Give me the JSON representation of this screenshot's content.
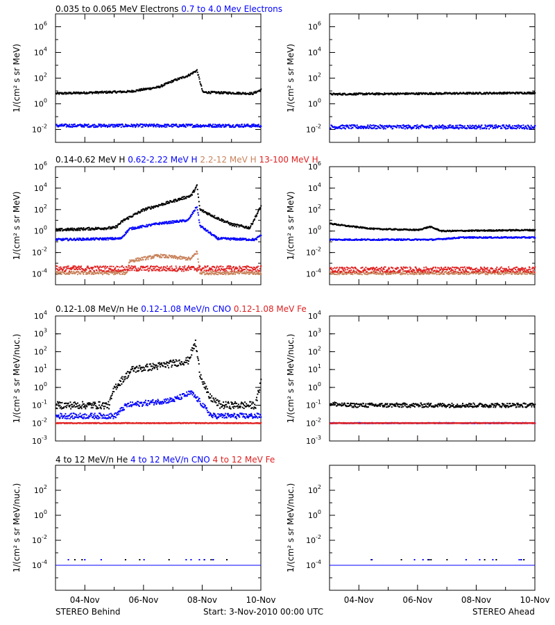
{
  "colors": {
    "black": "#000000",
    "blue": "#0000ff",
    "tan": "#c8825a",
    "red": "#e02020",
    "background": "#ffffff"
  },
  "rows": [
    {
      "legend": [
        {
          "text": "0.035 to 0.065 MeV Electrons",
          "color": "#000000"
        },
        {
          "text": "0.7 to 4.0 Mev Electrons",
          "color": "#0000ff"
        }
      ],
      "ylabel": "1/(cm² s sr MeV)"
    },
    {
      "legend": [
        {
          "text": "0.14-0.62 MeV H",
          "color": "#000000"
        },
        {
          "text": "0.62-2.22 MeV H",
          "color": "#0000ff"
        },
        {
          "text": "2.2-12 MeV H",
          "color": "#c8825a"
        },
        {
          "text": "13-100 MeV H",
          "color": "#e02020"
        }
      ],
      "ylabel": "1/(cm² s sr MeV)"
    },
    {
      "legend": [
        {
          "text": "0.12-1.08 MeV/n He",
          "color": "#000000"
        },
        {
          "text": "0.12-1.08 MeV/n CNO",
          "color": "#0000ff"
        },
        {
          "text": "0.12-1.08 MeV Fe",
          "color": "#e02020"
        }
      ],
      "ylabel": "1/(cm² s sr MeV/nuc.)"
    },
    {
      "legend": [
        {
          "text": "4 to 12 MeV/n He",
          "color": "#000000"
        },
        {
          "text": "4 to 12 MeV/n CNO",
          "color": "#0000ff"
        },
        {
          "text": "4 to 12 MeV Fe",
          "color": "#e02020"
        }
      ],
      "ylabel": "1/(cm² s sr MeV/nuc.)"
    }
  ],
  "footer": {
    "left": "STEREO Behind",
    "center": "Start:  3-Nov-2010 00:00 UTC",
    "right": "STEREO Ahead"
  },
  "chart_data": [
    {
      "panel": "behind-electrons",
      "type": "scatter",
      "yscale": "log",
      "ylim_exp": [
        -3,
        7
      ],
      "ytick_exponents": [
        -2,
        0,
        2,
        4,
        6
      ],
      "xlim_days": [
        0,
        7
      ],
      "xticks": [
        "04-Nov",
        "06-Nov",
        "08-Nov",
        "10-Nov"
      ],
      "series": [
        {
          "color": "#000000",
          "profile": [
            [
              0,
              0.8
            ],
            [
              2.5,
              0.95
            ],
            [
              3.5,
              1.3
            ],
            [
              4.0,
              1.8
            ],
            [
              4.5,
              2.2
            ],
            [
              4.8,
              2.6
            ],
            [
              5.0,
              0.9
            ],
            [
              6.7,
              0.8
            ],
            [
              7.0,
              1.1
            ]
          ],
          "noise": 0.08
        },
        {
          "color": "#0000ff",
          "profile": [
            [
              0,
              -1.7
            ],
            [
              7,
              -1.7
            ]
          ],
          "noise": 0.12
        }
      ]
    },
    {
      "panel": "ahead-electrons",
      "type": "scatter",
      "yscale": "log",
      "ylim_exp": [
        -3,
        7
      ],
      "ytick_exponents": [
        -2,
        0,
        2,
        4,
        6
      ],
      "xlim_days": [
        0,
        7
      ],
      "xticks": [
        "04-Nov",
        "06-Nov",
        "08-Nov",
        "10-Nov"
      ],
      "series": [
        {
          "color": "#000000",
          "profile": [
            [
              0,
              0.75
            ],
            [
              7,
              0.85
            ]
          ],
          "noise": 0.07
        },
        {
          "color": "#0000ff",
          "profile": [
            [
              0,
              -1.8
            ],
            [
              7,
              -1.8
            ]
          ],
          "noise": 0.15
        }
      ]
    },
    {
      "panel": "behind-protons",
      "type": "scatter",
      "yscale": "log",
      "ylim_exp": [
        -5,
        6
      ],
      "ytick_exponents": [
        -4,
        -2,
        0,
        2,
        4,
        6
      ],
      "xlim_days": [
        0,
        7
      ],
      "xticks": [
        "04-Nov",
        "06-Nov",
        "08-Nov",
        "10-Nov"
      ],
      "series": [
        {
          "color": "#000000",
          "profile": [
            [
              0,
              0.1
            ],
            [
              2.0,
              0.3
            ],
            [
              2.3,
              1.0
            ],
            [
              3.0,
              2.0
            ],
            [
              4.0,
              2.8
            ],
            [
              4.6,
              3.3
            ],
            [
              4.8,
              4.2
            ],
            [
              4.9,
              2.0
            ],
            [
              5.5,
              1.2
            ],
            [
              6.0,
              0.6
            ],
            [
              6.6,
              0.3
            ],
            [
              7.0,
              2.4
            ]
          ],
          "noise": 0.12
        },
        {
          "color": "#0000ff",
          "profile": [
            [
              0,
              -0.8
            ],
            [
              2.2,
              -0.7
            ],
            [
              2.5,
              0.2
            ],
            [
              3.5,
              0.7
            ],
            [
              4.5,
              1.0
            ],
            [
              4.8,
              2.3
            ],
            [
              4.9,
              0.5
            ],
            [
              5.5,
              -0.7
            ],
            [
              6.8,
              -0.8
            ],
            [
              7.0,
              -0.3
            ]
          ],
          "noise": 0.1
        },
        {
          "color": "#c8825a",
          "profile": [
            [
              0,
              -3.9
            ],
            [
              2.4,
              -3.9
            ],
            [
              2.5,
              -2.8
            ],
            [
              3.5,
              -2.3
            ],
            [
              4.6,
              -2.6
            ],
            [
              4.8,
              -1.9
            ],
            [
              4.9,
              -3.9
            ],
            [
              7.0,
              -3.9
            ]
          ],
          "noise": 0.15
        },
        {
          "color": "#e02020",
          "profile": [
            [
              0,
              -3.5
            ],
            [
              7,
              -3.5
            ]
          ],
          "noise": 0.25
        }
      ]
    },
    {
      "panel": "ahead-protons",
      "type": "scatter",
      "yscale": "log",
      "ylim_exp": [
        -5,
        6
      ],
      "ytick_exponents": [
        -4,
        -2,
        0,
        2,
        4,
        6
      ],
      "xlim_days": [
        0,
        7
      ],
      "xticks": [
        "04-Nov",
        "06-Nov",
        "08-Nov",
        "10-Nov"
      ],
      "series": [
        {
          "color": "#000000",
          "profile": [
            [
              0,
              0.7
            ],
            [
              0.5,
              0.5
            ],
            [
              1.5,
              0.2
            ],
            [
              3.0,
              0.1
            ],
            [
              3.4,
              0.4
            ],
            [
              3.8,
              0.0
            ],
            [
              7.0,
              0.1
            ]
          ],
          "noise": 0.06
        },
        {
          "color": "#0000ff",
          "profile": [
            [
              0,
              -0.8
            ],
            [
              3.5,
              -0.8
            ],
            [
              4.5,
              -0.6
            ],
            [
              7.0,
              -0.6
            ]
          ],
          "noise": 0.06
        },
        {
          "color": "#c8825a",
          "profile": [
            [
              0,
              -3.9
            ],
            [
              7,
              -3.9
            ]
          ],
          "noise": 0.15
        },
        {
          "color": "#e02020",
          "profile": [
            [
              0,
              -3.6
            ],
            [
              7,
              -3.6
            ]
          ],
          "noise": 0.25
        }
      ]
    },
    {
      "panel": "behind-heavy",
      "type": "scatter",
      "yscale": "log",
      "ylim_exp": [
        -3,
        4
      ],
      "ytick_exponents": [
        -3,
        -2,
        -1,
        0,
        1,
        2,
        3,
        4
      ],
      "xlim_days": [
        0,
        7
      ],
      "xticks": [
        "04-Nov",
        "06-Nov",
        "08-Nov",
        "10-Nov"
      ],
      "series": [
        {
          "color": "#000000",
          "profile": [
            [
              0,
              -1.0
            ],
            [
              1.8,
              -1.0
            ],
            [
              2.0,
              0.0
            ],
            [
              2.6,
              1.0
            ],
            [
              3.5,
              1.2
            ],
            [
              4.5,
              1.5
            ],
            [
              4.75,
              2.5
            ],
            [
              4.9,
              0.8
            ],
            [
              5.2,
              -0.5
            ],
            [
              5.6,
              -1.0
            ],
            [
              6.8,
              -1.0
            ],
            [
              7.0,
              0.5
            ]
          ],
          "noise": 0.2
        },
        {
          "color": "#0000ff",
          "profile": [
            [
              0,
              -1.6
            ],
            [
              2.0,
              -1.6
            ],
            [
              2.4,
              -1.0
            ],
            [
              4.0,
              -0.7
            ],
            [
              4.6,
              -0.3
            ],
            [
              4.9,
              -0.8
            ],
            [
              5.3,
              -1.6
            ],
            [
              7.0,
              -1.6
            ]
          ],
          "noise": 0.15
        },
        {
          "color": "#e02020",
          "profile": [
            [
              0,
              -2.0
            ],
            [
              7,
              -2.0
            ]
          ],
          "noise": 0.02
        }
      ]
    },
    {
      "panel": "ahead-heavy",
      "type": "scatter",
      "yscale": "log",
      "ylim_exp": [
        -3,
        4
      ],
      "ytick_exponents": [
        -3,
        -2,
        -1,
        0,
        1,
        2,
        3,
        4
      ],
      "xlim_days": [
        0,
        7
      ],
      "xticks": [
        "04-Nov",
        "06-Nov",
        "08-Nov",
        "10-Nov"
      ],
      "series": [
        {
          "color": "#000000",
          "profile": [
            [
              0,
              -0.9
            ],
            [
              0.5,
              -1.0
            ],
            [
              7.0,
              -1.0
            ]
          ],
          "noise": 0.12
        },
        {
          "color": "#0000ff",
          "profile": [
            [
              0,
              -2.0
            ],
            [
              7,
              -2.0
            ]
          ],
          "noise": 0.02
        },
        {
          "color": "#e02020",
          "profile": [
            [
              0,
              -2.0
            ],
            [
              7,
              -2.0
            ]
          ],
          "noise": 0.02
        }
      ]
    },
    {
      "panel": "behind-heavy-high",
      "type": "scatter",
      "yscale": "log",
      "ylim_exp": [
        -6,
        4
      ],
      "ytick_exponents": [
        -4,
        -2,
        0,
        2
      ],
      "xlim_days": [
        0,
        7
      ],
      "xticks": [
        "04-Nov",
        "06-Nov",
        "08-Nov",
        "10-Nov"
      ],
      "series": [
        {
          "color": "#000000",
          "profile": [
            [
              0,
              -4
            ],
            [
              7,
              -4
            ]
          ],
          "noise": 0.0
        },
        {
          "color": "#0000ff",
          "profile": [
            [
              0,
              -4
            ],
            [
              7,
              -4
            ]
          ],
          "noise": 0.0
        }
      ]
    },
    {
      "panel": "ahead-heavy-high",
      "type": "scatter",
      "yscale": "log",
      "ylim_exp": [
        -6,
        4
      ],
      "ytick_exponents": [
        -4,
        -2,
        0,
        2
      ],
      "xlim_days": [
        0,
        7
      ],
      "xticks": [
        "04-Nov",
        "06-Nov",
        "08-Nov",
        "10-Nov"
      ],
      "series": [
        {
          "color": "#000000",
          "profile": [
            [
              0,
              -4
            ],
            [
              7,
              -4
            ]
          ],
          "noise": 0.0
        },
        {
          "color": "#0000ff",
          "profile": [
            [
              0,
              -4
            ],
            [
              7,
              -4
            ]
          ],
          "noise": 0.0
        }
      ]
    }
  ]
}
